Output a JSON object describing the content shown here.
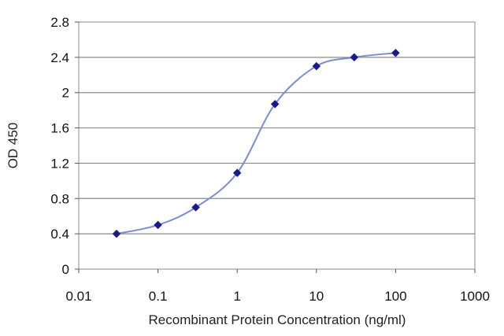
{
  "chart_data": {
    "type": "scatter",
    "title": "",
    "xlabel": "Recombinant Protein Concentration (ng/ml)",
    "ylabel": "OD 450",
    "x_scale": "log",
    "xlim": [
      0.01,
      1000
    ],
    "ylim": [
      0,
      2.8
    ],
    "x_ticks": [
      "0.01",
      "0.1",
      "1",
      "10",
      "100",
      "1000"
    ],
    "y_ticks": [
      "0",
      "0.4",
      "0.8",
      "1.2",
      "1.6",
      "2",
      "2.4",
      "2.8"
    ],
    "grid": "horizontal",
    "series": [
      {
        "x": [
          0.03,
          0.1,
          0.3,
          1,
          3,
          10,
          30,
          100
        ],
        "y": [
          0.4,
          0.5,
          0.7,
          1.09,
          1.87,
          2.3,
          2.4,
          2.45
        ],
        "color": "#1a1a8c",
        "line_color": "#7b8cd4",
        "marker": "diamond"
      }
    ]
  }
}
